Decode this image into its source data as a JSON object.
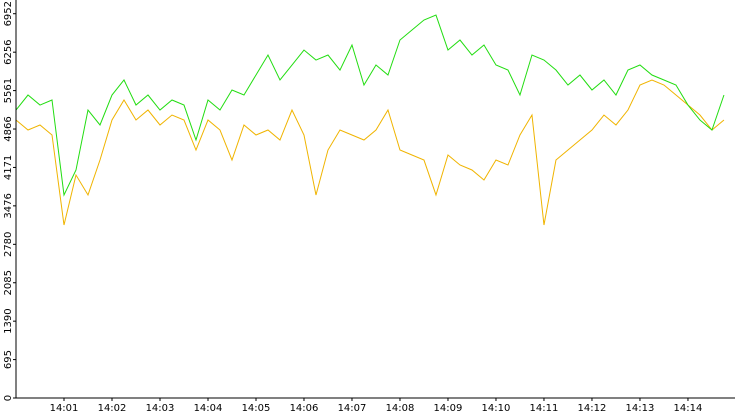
{
  "chart_data": {
    "type": "line",
    "x": [
      0,
      0.25,
      0.5,
      0.75,
      1,
      1.25,
      1.5,
      1.75,
      2,
      2.25,
      2.5,
      2.75,
      3,
      3.25,
      3.5,
      3.75,
      4,
      4.25,
      4.5,
      4.75,
      5,
      5.25,
      5.5,
      5.75,
      6,
      6.25,
      6.5,
      6.75,
      7,
      7.25,
      7.5,
      7.75,
      8,
      8.25,
      8.5,
      8.75,
      9,
      9.25,
      9.5,
      9.75,
      10,
      10.25,
      10.5,
      10.75,
      11,
      11.25,
      11.5,
      11.75,
      12,
      12.25,
      12.5,
      12.75,
      13,
      13.25,
      13.5,
      13.75,
      14,
      14.25,
      14.5,
      14.75
    ],
    "series": [
      {
        "color": "#22dd11",
        "values": [
          5210,
          5481,
          5300,
          5391,
          3673,
          4125,
          5210,
          4939,
          5481,
          5753,
          5300,
          5481,
          5210,
          5391,
          5300,
          4667,
          5391,
          5210,
          5572,
          5481,
          5843,
          6205,
          5753,
          6024,
          6295,
          6114,
          6205,
          5933,
          6386,
          5662,
          6024,
          5843,
          6476,
          6657,
          6838,
          6928,
          6295,
          6476,
          6205,
          6386,
          6024,
          5933,
          5481,
          6205,
          6114,
          5933,
          5662,
          5843,
          5572,
          5753,
          5481,
          5933,
          6024,
          5843,
          5753,
          5662,
          5300,
          5029,
          4848,
          5481
        ]
      },
      {
        "color": "#f0b400",
        "values": [
          5029,
          4848,
          4939,
          4758,
          3130,
          4034,
          3673,
          4305,
          5029,
          5391,
          5029,
          5210,
          4939,
          5119,
          5029,
          4486,
          5029,
          4848,
          4305,
          4939,
          4758,
          4848,
          4667,
          5210,
          4758,
          3673,
          4486,
          4848,
          4758,
          4667,
          4848,
          5210,
          4486,
          4396,
          4305,
          3673,
          4396,
          4215,
          4125,
          3944,
          4305,
          4215,
          4758,
          5119,
          3130,
          4305,
          4486,
          4667,
          4848,
          5119,
          4939,
          5210,
          5662,
          5753,
          5662,
          5481,
          5300,
          5119,
          4848,
          5029
        ]
      }
    ],
    "xlim": [
      0,
      14.98
    ],
    "xticks": [
      {
        "value": 1,
        "label": "14:01"
      },
      {
        "value": 2,
        "label": "14:02"
      },
      {
        "value": 3,
        "label": "14:03"
      },
      {
        "value": 4,
        "label": "14:04"
      },
      {
        "value": 5,
        "label": "14:05"
      },
      {
        "value": 6,
        "label": "14:06"
      },
      {
        "value": 7,
        "label": "14:07"
      },
      {
        "value": 8,
        "label": "14:08"
      },
      {
        "value": 9,
        "label": "14:09"
      },
      {
        "value": 10,
        "label": "14:10"
      },
      {
        "value": 11,
        "label": "14:11"
      },
      {
        "value": 12,
        "label": "14:12"
      },
      {
        "value": 13,
        "label": "14:13"
      },
      {
        "value": 14,
        "label": "14:14"
      }
    ],
    "ylim": [
      0,
      7200
    ],
    "yticks": [
      0,
      695,
      1390,
      2085,
      2780,
      3476,
      4171,
      4866,
      5561,
      6256,
      6952
    ]
  }
}
